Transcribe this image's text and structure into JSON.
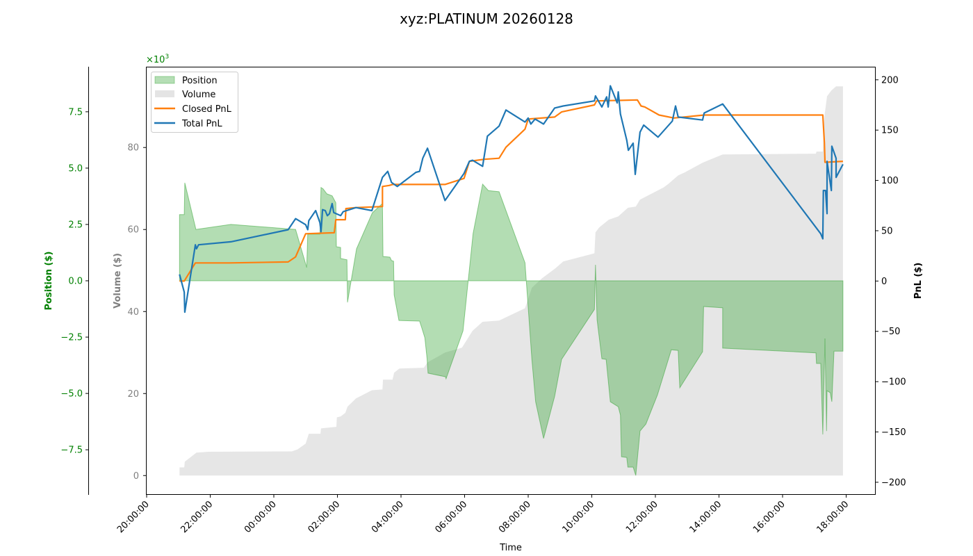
{
  "chart_data": {
    "type": "area",
    "title": "xyz:PLATINUM 20260128",
    "xlabel": "Time",
    "x_ticks": [
      "20:00:00",
      "22:00:00",
      "00:00:00",
      "02:00:00",
      "04:00:00",
      "06:00:00",
      "08:00:00",
      "10:00:00",
      "12:00:00",
      "14:00:00",
      "16:00:00",
      "18:00:00"
    ],
    "axes": {
      "position": {
        "label": "Position ($)",
        "color": "#008000",
        "scale_note": "×10^3",
        "ylim": [
          -9.5,
          9.5
        ],
        "ticks": [
          -7.5,
          -5.0,
          -2.5,
          0.0,
          2.5,
          5.0,
          7.5
        ],
        "tick_labels": [
          "−7.5",
          "−5.0",
          "−2.5",
          "0.0",
          "2.5",
          "5.0",
          "7.5"
        ]
      },
      "volume": {
        "label": "Volume ($)",
        "color": "#808080",
        "ylim": [
          -4.7,
          99.7
        ],
        "ticks": [
          0,
          20,
          40,
          60,
          80
        ],
        "tick_labels": [
          "0",
          "20",
          "40",
          "60",
          "80"
        ]
      },
      "pnl": {
        "label": "PnL ($)",
        "color": "#000000",
        "ylim": [
          -212.5,
          213
        ],
        "ticks": [
          -200,
          -150,
          -100,
          -50,
          0,
          50,
          100,
          150,
          200
        ],
        "tick_labels": [
          "−200",
          "−150",
          "−100",
          "−50",
          "0",
          "50",
          "100",
          "150",
          "200"
        ]
      }
    },
    "legend": {
      "placement": "upper-left",
      "entries": [
        "Position",
        "Volume",
        "Closed PnL",
        "Total PnL"
      ]
    },
    "colors": {
      "position": "#2ca02c",
      "volume": "#bdbdbd",
      "closed_pnl": "#ff7f0e",
      "total_pnl": "#1f77b4"
    },
    "series": [
      {
        "name": "Volume",
        "axis": "volume",
        "unit": "thousands $",
        "points": [
          [
            "21:02",
            0
          ],
          [
            "21:02",
            2.0
          ],
          [
            "21:11",
            2.0
          ],
          [
            "21:12",
            3.4
          ],
          [
            "21:34",
            5.6
          ],
          [
            "21:57",
            5.8
          ],
          [
            "00:34",
            5.9
          ],
          [
            "00:45",
            6.4
          ],
          [
            "01:00",
            7.8
          ],
          [
            "01:06",
            10.2
          ],
          [
            "01:28",
            10.2
          ],
          [
            "01:29",
            11.5
          ],
          [
            "01:58",
            11.9
          ],
          [
            "01:59",
            14.2
          ],
          [
            "02:06",
            14.4
          ],
          [
            "02:15",
            15.3
          ],
          [
            "02:19",
            16.8
          ],
          [
            "02:35",
            18.8
          ],
          [
            "03:05",
            20.8
          ],
          [
            "03:25",
            21.0
          ],
          [
            "03:26",
            23.4
          ],
          [
            "03:44",
            23.4
          ],
          [
            "03:47",
            25.1
          ],
          [
            "03:57",
            26.1
          ],
          [
            "04:43",
            26.3
          ],
          [
            "04:50",
            27.6
          ],
          [
            "05:23",
            30.0
          ],
          [
            "05:55",
            31.2
          ],
          [
            "05:59",
            32.0
          ],
          [
            "06:15",
            35.3
          ],
          [
            "06:34",
            37.5
          ],
          [
            "07:05",
            37.8
          ],
          [
            "07:54",
            40.8
          ],
          [
            "08:07",
            45.8
          ],
          [
            "08:26",
            48.1
          ],
          [
            "08:51",
            50.5
          ],
          [
            "09:06",
            52.2
          ],
          [
            "10:05",
            54.2
          ],
          [
            "10:07",
            59.3
          ],
          [
            "10:14",
            60.5
          ],
          [
            "10:32",
            62.4
          ],
          [
            "10:50",
            63.2
          ],
          [
            "11:08",
            65.3
          ],
          [
            "11:23",
            65.6
          ],
          [
            "11:31",
            67.3
          ],
          [
            "12:16",
            70.3
          ],
          [
            "12:25",
            71.2
          ],
          [
            "12:43",
            73.2
          ],
          [
            "12:55",
            73.9
          ],
          [
            "13:29",
            76.3
          ],
          [
            "14:07",
            78.3
          ],
          [
            "17:03",
            78.5
          ],
          [
            "17:04",
            79.0
          ],
          [
            "17:16",
            79.0
          ],
          [
            "17:19",
            87.6
          ],
          [
            "17:24",
            92.5
          ],
          [
            "17:32",
            93.9
          ],
          [
            "17:41",
            94.9
          ],
          [
            "17:54",
            94.9
          ],
          [
            "17:54",
            0
          ]
        ]
      },
      {
        "name": "Position",
        "axis": "position",
        "unit": "thousands $",
        "points": [
          [
            "21:02",
            0
          ],
          [
            "21:02",
            2.94
          ],
          [
            "21:11",
            2.94
          ],
          [
            "21:12",
            4.35
          ],
          [
            "21:33",
            2.28
          ],
          [
            "21:40",
            2.3
          ],
          [
            "22:39",
            2.5
          ],
          [
            "00:41",
            2.28
          ],
          [
            "01:02",
            0.59
          ],
          [
            "01:04",
            2.07
          ],
          [
            "01:27",
            2.07
          ],
          [
            "01:29",
            4.14
          ],
          [
            "01:33",
            4.08
          ],
          [
            "01:40",
            3.86
          ],
          [
            "01:50",
            3.77
          ],
          [
            "01:57",
            3.46
          ],
          [
            "01:58",
            1.51
          ],
          [
            "02:06",
            1.48
          ],
          [
            "02:06",
            0.99
          ],
          [
            "02:18",
            0.93
          ],
          [
            "02:19",
            -0.96
          ],
          [
            "02:36",
            1.42
          ],
          [
            "03:06",
            3.02
          ],
          [
            "03:25",
            3.43
          ],
          [
            "03:26",
            1.08
          ],
          [
            "03:39",
            1.05
          ],
          [
            "03:42",
            0.9
          ],
          [
            "03:46",
            0.87
          ],
          [
            "03:47",
            -0.62
          ],
          [
            "03:56",
            -1.76
          ],
          [
            "04:35",
            -1.79
          ],
          [
            "04:39",
            -2.07
          ],
          [
            "04:45",
            -2.53
          ],
          [
            "04:49",
            -3.43
          ],
          [
            "04:51",
            -4.1
          ],
          [
            "05:24",
            -4.26
          ],
          [
            "05:25",
            -4.35
          ],
          [
            "05:57",
            -2.22
          ],
          [
            "06:16",
            2.1
          ],
          [
            "06:34",
            4.29
          ],
          [
            "06:45",
            4.0
          ],
          [
            "07:05",
            3.95
          ],
          [
            "07:54",
            0.8
          ],
          [
            "08:07",
            -3.49
          ],
          [
            "08:14",
            -5.37
          ],
          [
            "08:29",
            -7.0
          ],
          [
            "08:50",
            -5.12
          ],
          [
            "09:03",
            -3.49
          ],
          [
            "10:05",
            -1.27
          ],
          [
            "10:07",
            0.71
          ],
          [
            "10:10",
            -1.73
          ],
          [
            "10:19",
            -3.46
          ],
          [
            "10:27",
            -3.49
          ],
          [
            "10:35",
            -5.37
          ],
          [
            "10:50",
            -5.59
          ],
          [
            "10:54",
            -5.96
          ],
          [
            "10:56",
            -7.81
          ],
          [
            "11:06",
            -7.84
          ],
          [
            "11:08",
            -8.27
          ],
          [
            "11:18",
            -8.27
          ],
          [
            "11:23",
            -8.64
          ],
          [
            "11:31",
            -6.67
          ],
          [
            "11:42",
            -6.36
          ],
          [
            "12:04",
            -5.06
          ],
          [
            "12:30",
            -3.06
          ],
          [
            "12:43",
            -3.09
          ],
          [
            "12:46",
            -4.75
          ],
          [
            "13:29",
            -3.15
          ],
          [
            "13:31",
            -1.14
          ],
          [
            "14:07",
            -1.2
          ],
          [
            "14:07",
            -2.99
          ],
          [
            "17:03",
            -3.2
          ],
          [
            "17:04",
            -3.67
          ],
          [
            "17:12",
            -3.67
          ],
          [
            "17:16",
            -6.82
          ],
          [
            "17:20",
            -2.56
          ],
          [
            "17:23",
            -6.67
          ],
          [
            "17:24",
            -4.88
          ],
          [
            "17:30",
            -4.97
          ],
          [
            "17:33",
            -5.37
          ],
          [
            "17:37",
            -3.12
          ],
          [
            "17:54",
            -3.12
          ],
          [
            "17:54",
            0
          ]
        ]
      },
      {
        "name": "Closed PnL",
        "axis": "pnl",
        "unit": "$",
        "points": [
          [
            "21:02",
            0
          ],
          [
            "21:11",
            0
          ],
          [
            "21:32",
            18
          ],
          [
            "22:36",
            18
          ],
          [
            "00:27",
            19
          ],
          [
            "00:41",
            24
          ],
          [
            "01:00",
            47
          ],
          [
            "01:54",
            48
          ],
          [
            "01:57",
            61
          ],
          [
            "02:15",
            61
          ],
          [
            "02:16",
            72
          ],
          [
            "02:35",
            73
          ],
          [
            "03:25",
            74
          ],
          [
            "03:25",
            94
          ],
          [
            "03:38",
            95
          ],
          [
            "03:44",
            96
          ],
          [
            "05:23",
            96
          ],
          [
            "05:59",
            102
          ],
          [
            "06:09",
            119
          ],
          [
            "06:37",
            121
          ],
          [
            "07:05",
            122
          ],
          [
            "07:18",
            133
          ],
          [
            "07:54",
            151
          ],
          [
            "08:00",
            161
          ],
          [
            "08:50",
            163
          ],
          [
            "09:03",
            168
          ],
          [
            "10:05",
            175
          ],
          [
            "10:09",
            179
          ],
          [
            "11:26",
            180
          ],
          [
            "11:33",
            174
          ],
          [
            "11:40",
            173
          ],
          [
            "12:07",
            165
          ],
          [
            "12:35",
            162
          ],
          [
            "13:32",
            165
          ],
          [
            "17:16",
            165
          ],
          [
            "17:19",
            137
          ],
          [
            "17:20",
            118
          ],
          [
            "17:54",
            119
          ]
        ]
      },
      {
        "name": "Total PnL",
        "axis": "pnl",
        "unit": "$",
        "points": [
          [
            "21:02",
            6.6
          ],
          [
            "21:11",
            -11
          ],
          [
            "21:12",
            -31
          ],
          [
            "21:32",
            36
          ],
          [
            "21:34",
            32
          ],
          [
            "21:38",
            36
          ],
          [
            "22:39",
            39
          ],
          [
            "00:27",
            51
          ],
          [
            "00:41",
            62
          ],
          [
            "01:00",
            56
          ],
          [
            "01:04",
            51
          ],
          [
            "01:06",
            60
          ],
          [
            "01:19",
            70
          ],
          [
            "01:27",
            58
          ],
          [
            "01:29",
            49
          ],
          [
            "01:32",
            71
          ],
          [
            "01:37",
            70
          ],
          [
            "01:41",
            65
          ],
          [
            "01:45",
            67
          ],
          [
            "01:50",
            77
          ],
          [
            "01:53",
            68
          ],
          [
            "02:06",
            65
          ],
          [
            "02:11",
            69
          ],
          [
            "02:35",
            73
          ],
          [
            "03:05",
            70
          ],
          [
            "03:25",
            103
          ],
          [
            "03:35",
            109
          ],
          [
            "03:42",
            98
          ],
          [
            "03:53",
            94
          ],
          [
            "04:28",
            108
          ],
          [
            "04:35",
            109
          ],
          [
            "04:41",
            122
          ],
          [
            "04:50",
            132
          ],
          [
            "05:23",
            80
          ],
          [
            "05:59",
            107
          ],
          [
            "06:09",
            119
          ],
          [
            "06:15",
            120
          ],
          [
            "06:34",
            114
          ],
          [
            "06:43",
            144
          ],
          [
            "07:05",
            154
          ],
          [
            "07:18",
            170
          ],
          [
            "07:54",
            158
          ],
          [
            "08:00",
            162
          ],
          [
            "08:05",
            156
          ],
          [
            "08:13",
            161
          ],
          [
            "08:29",
            156
          ],
          [
            "08:50",
            172
          ],
          [
            "09:06",
            174
          ],
          [
            "10:05",
            179
          ],
          [
            "10:07",
            184
          ],
          [
            "10:19",
            173
          ],
          [
            "10:28",
            183
          ],
          [
            "10:31",
            173
          ],
          [
            "10:35",
            194
          ],
          [
            "10:48",
            177
          ],
          [
            "10:50",
            188
          ],
          [
            "10:54",
            166
          ],
          [
            "11:06",
            140
          ],
          [
            "11:09",
            130
          ],
          [
            "11:18",
            137
          ],
          [
            "11:22",
            106
          ],
          [
            "11:31",
            148
          ],
          [
            "11:38",
            155
          ],
          [
            "12:05",
            143
          ],
          [
            "12:32",
            159
          ],
          [
            "12:38",
            174
          ],
          [
            "12:43",
            163
          ],
          [
            "13:29",
            160
          ],
          [
            "13:32",
            167
          ],
          [
            "14:07",
            176
          ],
          [
            "17:12",
            47
          ],
          [
            "17:16",
            42
          ],
          [
            "17:17",
            90
          ],
          [
            "17:21",
            90
          ],
          [
            "17:24",
            67
          ],
          [
            "17:24",
            119
          ],
          [
            "17:32",
            90
          ],
          [
            "17:33",
            134
          ],
          [
            "17:41",
            122
          ],
          [
            "17:41",
            103
          ],
          [
            "17:54",
            116
          ]
        ]
      }
    ]
  }
}
